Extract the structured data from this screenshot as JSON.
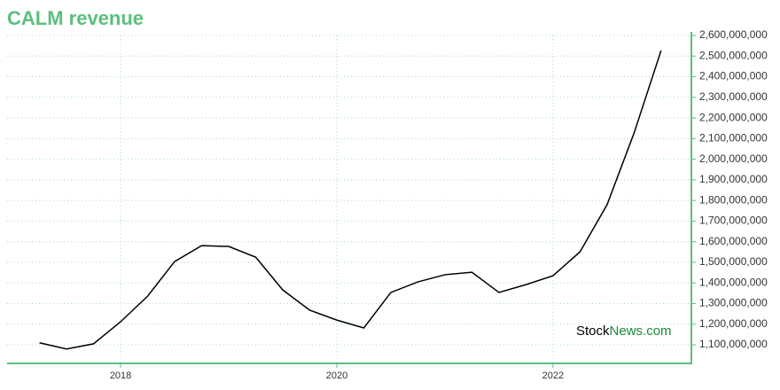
{
  "chart_data": {
    "type": "line",
    "title": "CALM revenue",
    "watermark": [
      "Stock",
      "News.com"
    ],
    "x": [
      2017.25,
      2017.5,
      2017.75,
      2018,
      2018.25,
      2018.5,
      2018.75,
      2019,
      2019.25,
      2019.5,
      2019.75,
      2020,
      2020.25,
      2020.5,
      2020.75,
      2021,
      2021.25,
      2021.5,
      2021.75,
      2022,
      2022.25,
      2022.5,
      2022.75,
      2023
    ],
    "series": [
      {
        "name": "revenue",
        "color": "#000000",
        "values": [
          1110000000,
          1080000000,
          1105000000,
          1212000000,
          1336000000,
          1504000000,
          1581000000,
          1577000000,
          1525000000,
          1366000000,
          1268000000,
          1220000000,
          1182000000,
          1354000000,
          1405000000,
          1440000000,
          1452000000,
          1354000000,
          1392000000,
          1435000000,
          1551000000,
          1779000000,
          2127000000,
          2527000000
        ]
      }
    ],
    "xlim": [
      2016.95,
      2023.28
    ],
    "xticks": [
      2018,
      2020,
      2022
    ],
    "ylim": [
      1010000000,
      2600000000
    ],
    "yticks": [
      {
        "value": 1100000000,
        "label": "1,100,000,000"
      },
      {
        "value": 1200000000,
        "label": "1,200,000,000"
      },
      {
        "value": 1300000000,
        "label": "1,300,000,000"
      },
      {
        "value": 1400000000,
        "label": "1,400,000,000"
      },
      {
        "value": 1500000000,
        "label": "1,500,000,000"
      },
      {
        "value": 1600000000,
        "label": "1,600,000,000"
      },
      {
        "value": 1700000000,
        "label": "1,700,000,000"
      },
      {
        "value": 1800000000,
        "label": "1,800,000,000"
      },
      {
        "value": 1900000000,
        "label": "1,900,000,000"
      },
      {
        "value": 2000000000,
        "label": "2,000,000,000"
      },
      {
        "value": 2100000000,
        "label": "2,100,000,000"
      },
      {
        "value": 2200000000,
        "label": "2,200,000,000"
      },
      {
        "value": 2300000000,
        "label": "2,300,000,000"
      },
      {
        "value": 2400000000,
        "label": "2,400,000,000"
      },
      {
        "value": 2500000000,
        "label": "2,500,000,000"
      },
      {
        "value": 2600000000,
        "label": "2,600,000,000"
      }
    ],
    "grid": true,
    "axis_color": "#5cbf7e"
  }
}
